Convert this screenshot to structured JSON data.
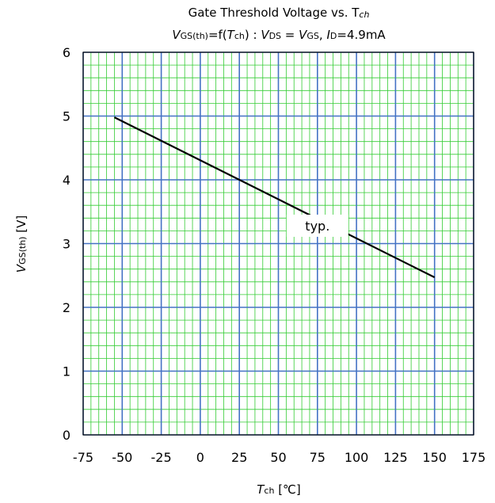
{
  "chart_data": {
    "type": "line",
    "title": "Gate Threshold Voltage vs. T",
    "title_sub": "ch",
    "subtitle": {
      "p1": "V",
      "p2": "GS(th)",
      "p3": "=f(",
      "p4": "T",
      "p5": "ch",
      "p6": ") : ",
      "p7": "V",
      "p8": "DS",
      "p9": " = ",
      "p10": "V",
      "p11": "GS",
      "p12": ", ",
      "p13": "I",
      "p14": "D",
      "p15": "=4.9mA"
    },
    "xlabel": {
      "main": "T",
      "sub": "ch",
      "unit": " [℃]"
    },
    "ylabel": {
      "main": "V",
      "sub": "GS(th)",
      "unit": " [V]"
    },
    "xlim": [
      -75,
      175
    ],
    "ylim": [
      0,
      6
    ],
    "x_ticks": [
      -75,
      -50,
      -25,
      0,
      25,
      50,
      75,
      100,
      125,
      150,
      175
    ],
    "y_ticks": [
      0,
      1,
      2,
      3,
      4,
      5,
      6
    ],
    "grid": true,
    "series": [
      {
        "x": [
          -55,
          150
        ],
        "y": [
          4.98,
          2.47
        ],
        "color": "#000000"
      }
    ],
    "annotation": {
      "text": "typ.",
      "x": 75,
      "y": 3.28
    },
    "colors": {
      "major_grid": "#4472c4",
      "minor_grid": "#33cc33",
      "line": "#000000"
    }
  }
}
